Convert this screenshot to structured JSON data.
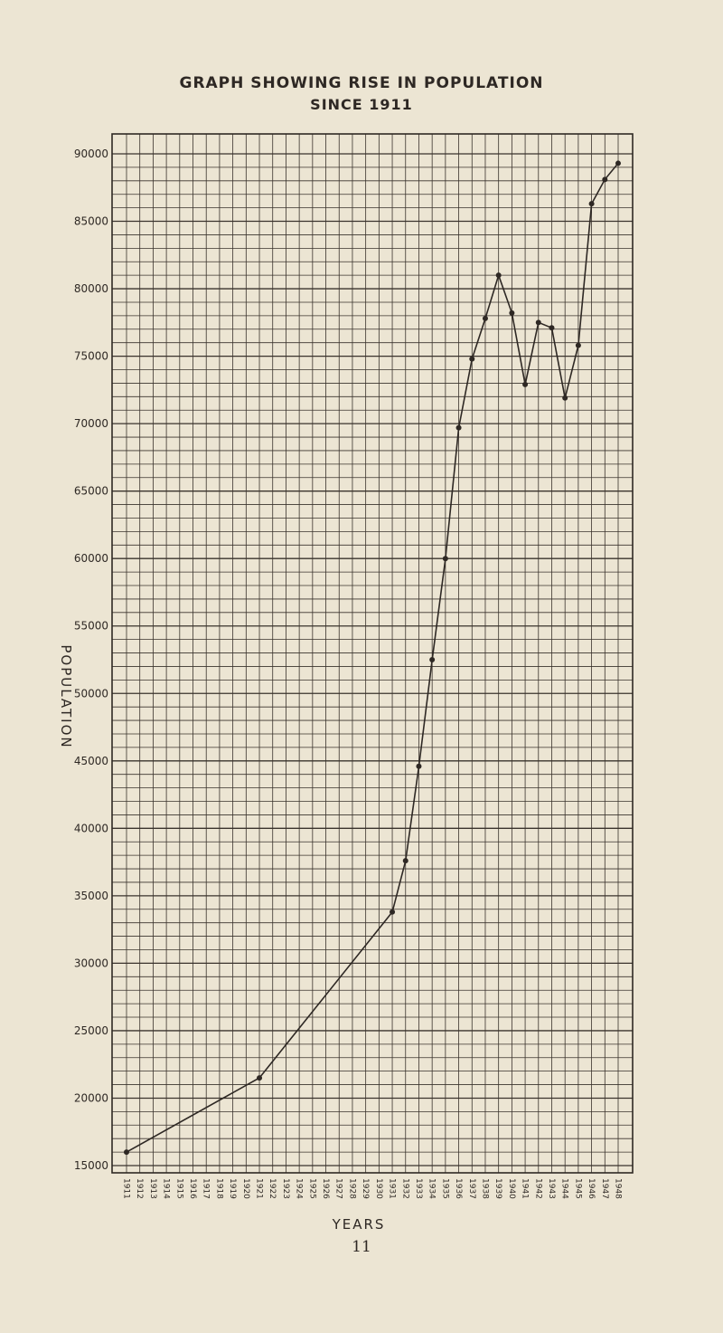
{
  "title_line1": "GRAPH SHOWING RISE IN POPULATION",
  "title_line2": "SINCE 1911",
  "page_number": "11",
  "colors": {
    "background": "#ece5d3",
    "ink": "#2e2824",
    "grid": "#3a332d"
  },
  "chart_data": {
    "type": "line",
    "title": "GRAPH SHOWING RISE IN POPULATION SINCE 1911",
    "xlabel": "YEARS",
    "ylabel": "POPULATION",
    "ylim": [
      15000,
      90000
    ],
    "yticks": [
      15000,
      20000,
      25000,
      30000,
      35000,
      40000,
      45000,
      50000,
      55000,
      60000,
      65000,
      70000,
      75000,
      80000,
      85000,
      90000
    ],
    "grid": true,
    "categories": [
      "1911",
      "1912",
      "1913",
      "1914",
      "1915",
      "1916",
      "1917",
      "1918",
      "1919",
      "1920",
      "1921",
      "1922",
      "1923",
      "1924",
      "1925",
      "1926",
      "1927",
      "1928",
      "1929",
      "1930",
      "1931",
      "1932",
      "1933",
      "1934",
      "1935",
      "1936",
      "1937",
      "1938",
      "1939",
      "1940",
      "1941",
      "1942",
      "1943",
      "1944",
      "1945",
      "1946",
      "1947",
      "1948"
    ],
    "points": [
      {
        "x": 1911,
        "y": 16000
      },
      {
        "x": 1921,
        "y": 21500
      },
      {
        "x": 1931,
        "y": 33800
      },
      {
        "x": 1932,
        "y": 37600
      },
      {
        "x": 1933,
        "y": 44600
      },
      {
        "x": 1934,
        "y": 52500
      },
      {
        "x": 1935,
        "y": 60000
      },
      {
        "x": 1936,
        "y": 69700
      },
      {
        "x": 1937,
        "y": 74800
      },
      {
        "x": 1938,
        "y": 77800
      },
      {
        "x": 1939,
        "y": 81000
      },
      {
        "x": 1940,
        "y": 78200
      },
      {
        "x": 1941,
        "y": 72900
      },
      {
        "x": 1942,
        "y": 77500
      },
      {
        "x": 1943,
        "y": 77100
      },
      {
        "x": 1944,
        "y": 71900
      },
      {
        "x": 1945,
        "y": 75800
      },
      {
        "x": 1946,
        "y": 86300
      },
      {
        "x": 1947,
        "y": 88100
      },
      {
        "x": 1948,
        "y": 89300
      }
    ]
  }
}
